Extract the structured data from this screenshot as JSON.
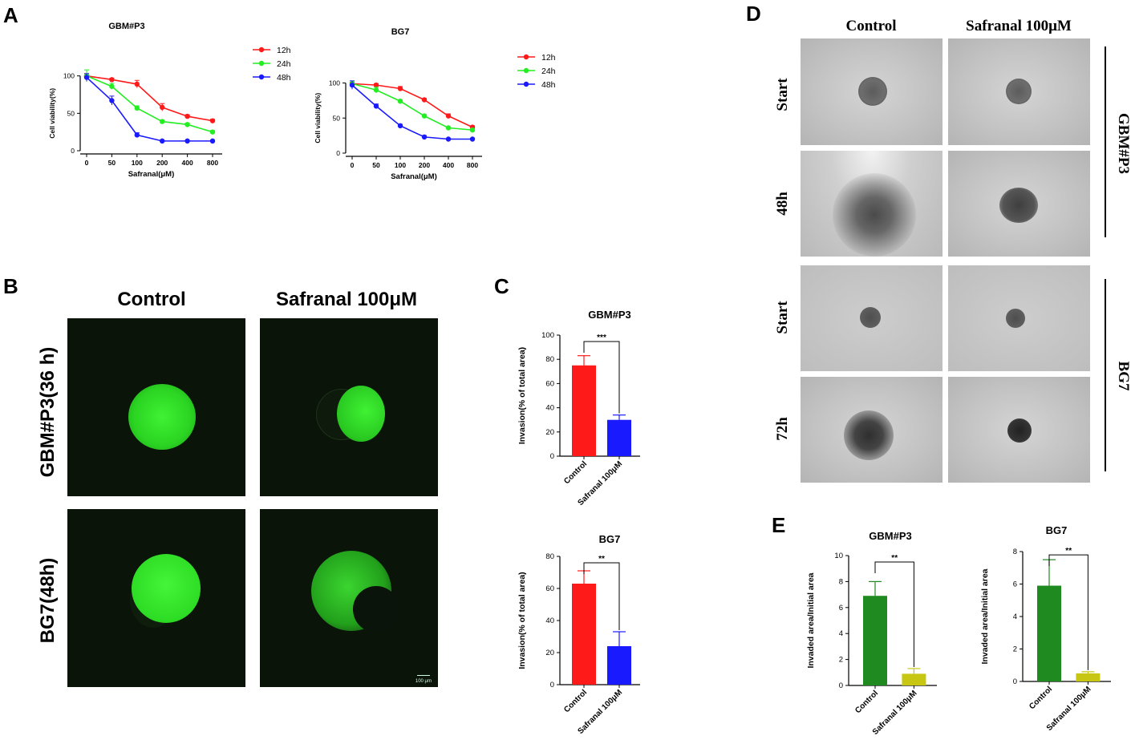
{
  "panel_letters": {
    "a": "A",
    "b": "B",
    "c": "C",
    "d": "D",
    "e": "E"
  },
  "panel_b": {
    "col_control": "Control",
    "col_treat": "Safranal 100μM",
    "row1_label": "GBM#P3(36 h)",
    "row2_label": "BG7(48h)",
    "scalebar_label": "100 μm",
    "colors": {
      "bg": "#0b1409",
      "fluor": "#2fe024"
    }
  },
  "panel_d": {
    "col_control": "Control",
    "col_treat": "Safranal 100μM",
    "rows": [
      "Start",
      "48h",
      "Start",
      "72h"
    ],
    "group1": "GBM#P3",
    "group2": "BG7"
  },
  "chart_data": [
    {
      "id": "A1",
      "type": "line",
      "title": "GBM#P3",
      "xlabel": "Safranal(μM)",
      "ylabel": "Cell viability(%)",
      "categories": [
        "0",
        "50",
        "100",
        "200",
        "400",
        "800"
      ],
      "ylim": [
        0,
        120
      ],
      "yticks": [
        0,
        50,
        100
      ],
      "series": [
        {
          "name": "12h",
          "color": "#ff1a1a",
          "values": [
            100,
            95,
            89,
            58,
            46,
            40
          ],
          "errors": [
            3,
            2,
            5,
            5,
            2,
            2
          ]
        },
        {
          "name": "24h",
          "color": "#22ee22",
          "values": [
            100,
            86,
            57,
            39,
            35,
            25
          ],
          "errors": [
            8,
            4,
            3,
            2,
            2,
            2
          ]
        },
        {
          "name": "48h",
          "color": "#1a1aff",
          "values": [
            98,
            67,
            21,
            13,
            13,
            13
          ],
          "errors": [
            5,
            6,
            3,
            1,
            1,
            1
          ]
        }
      ],
      "legend_position": "right"
    },
    {
      "id": "A2",
      "type": "line",
      "title": "BG7",
      "xlabel": "Safranal(μM)",
      "ylabel": "Cell viability(%)",
      "categories": [
        "0",
        "50",
        "100",
        "200",
        "400",
        "800"
      ],
      "ylim": [
        0,
        120
      ],
      "yticks": [
        0,
        50,
        100
      ],
      "series": [
        {
          "name": "12h",
          "color": "#ff1a1a",
          "values": [
            99,
            97,
            92,
            76,
            53,
            37
          ],
          "errors": [
            2,
            2,
            3,
            2,
            3,
            2
          ]
        },
        {
          "name": "24h",
          "color": "#22ee22",
          "values": [
            99,
            90,
            74,
            53,
            36,
            33
          ],
          "errors": [
            4,
            4,
            2,
            2,
            1,
            1
          ]
        },
        {
          "name": "48h",
          "color": "#1a1aff",
          "values": [
            97,
            67,
            39,
            23,
            20,
            20
          ],
          "errors": [
            6,
            3,
            2,
            2,
            1,
            1
          ]
        }
      ],
      "legend_position": "right"
    },
    {
      "id": "C1",
      "type": "bar",
      "title": "GBM#P3",
      "ylabel": "Invasion(% of total area)",
      "categories": [
        "Control",
        "Safranal 100μM"
      ],
      "values": [
        75,
        30
      ],
      "errors": [
        8,
        4
      ],
      "colors": [
        "#ff1a1a",
        "#1a1aff"
      ],
      "ylim": [
        0,
        100
      ],
      "yticks": [
        0,
        20,
        40,
        60,
        80,
        100
      ],
      "significance": "***"
    },
    {
      "id": "C2",
      "type": "bar",
      "title": "BG7",
      "ylabel": "Invasion(% of total area)",
      "categories": [
        "Control",
        "Safranal 100μM"
      ],
      "values": [
        63,
        24
      ],
      "errors": [
        8,
        9
      ],
      "colors": [
        "#ff1a1a",
        "#1a1aff"
      ],
      "ylim": [
        0,
        80
      ],
      "yticks": [
        0,
        20,
        40,
        60,
        80
      ],
      "significance": "**"
    },
    {
      "id": "E1",
      "type": "bar",
      "title": "GBM#P3",
      "ylabel": "Invaded area/Initial area",
      "categories": [
        "Control",
        "Safranal 100μM"
      ],
      "values": [
        6.9,
        0.9
      ],
      "errors": [
        1.1,
        0.4
      ],
      "colors": [
        "#1f8a1f",
        "#c7c713"
      ],
      "ylim": [
        0,
        10
      ],
      "yticks": [
        0,
        2,
        4,
        6,
        8,
        10
      ],
      "significance": "**"
    },
    {
      "id": "E2",
      "type": "bar",
      "title": "BG7",
      "ylabel": "Invaded area/Initial area",
      "categories": [
        "Control",
        "Safranal 100μM"
      ],
      "values": [
        5.9,
        0.5
      ],
      "errors": [
        1.6,
        0.1
      ],
      "colors": [
        "#1f8a1f",
        "#c7c713"
      ],
      "ylim": [
        0,
        8
      ],
      "yticks": [
        0,
        2,
        4,
        6,
        8
      ],
      "significance": "**"
    }
  ]
}
